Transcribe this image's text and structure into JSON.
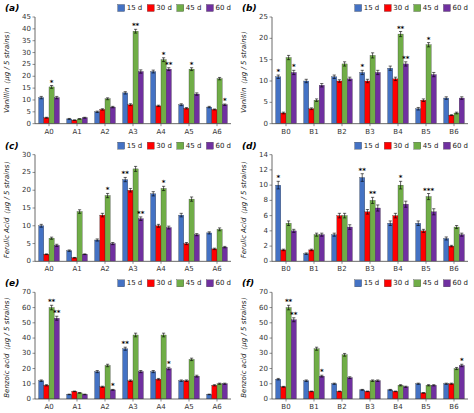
{
  "chart_data": [
    {
      "type": "bar",
      "title": "(a)",
      "ylabel": "Vanillin（μg / 5 strains）",
      "categories": [
        "A0",
        "A1",
        "A2",
        "A3",
        "A4",
        "A5",
        "A6"
      ],
      "ylim": [
        0,
        45
      ],
      "yticks": [
        0,
        5,
        10,
        15,
        20,
        25,
        30,
        35,
        40,
        45
      ],
      "grid": false,
      "legend": "upper right",
      "series": [
        {
          "name": "15 d",
          "color": "#4472C4",
          "values": [
            11,
            2,
            5,
            13,
            22,
            8,
            7
          ],
          "errors": [
            0.5,
            0.2,
            0.3,
            0.5,
            0.6,
            0.4,
            0.3
          ],
          "stars": [
            null,
            null,
            null,
            null,
            null,
            null,
            null
          ]
        },
        {
          "name": "30 d",
          "color": "#FF0000",
          "values": [
            2.5,
            1.5,
            6,
            8,
            7.5,
            6.5,
            6
          ],
          "errors": [
            0.2,
            0.1,
            0.3,
            0.4,
            0.3,
            0.3,
            0.2
          ],
          "stars": [
            null,
            null,
            null,
            null,
            null,
            null,
            null
          ]
        },
        {
          "name": "45 d",
          "color": "#70AD47",
          "values": [
            15.5,
            2,
            10.5,
            39,
            27,
            23,
            19
          ],
          "errors": [
            0.6,
            0.1,
            0.4,
            0.8,
            0.8,
            0.6,
            0.5
          ],
          "stars": [
            "*",
            null,
            null,
            "**",
            "*",
            "*",
            null
          ]
        },
        {
          "name": "60 d",
          "color": "#7030A0",
          "values": [
            11,
            2.5,
            7,
            22,
            23,
            12.5,
            8
          ],
          "errors": [
            0.5,
            0.2,
            0.3,
            0.7,
            0.6,
            0.5,
            0.3
          ],
          "stars": [
            null,
            null,
            null,
            null,
            "**",
            null,
            "*"
          ]
        }
      ]
    },
    {
      "type": "bar",
      "title": "(b)",
      "ylabel": "Vanillin（μg / 5 strains）",
      "categories": [
        "B0",
        "B1",
        "B2",
        "B3",
        "B4",
        "B5",
        "B6"
      ],
      "ylim": [
        0,
        25
      ],
      "yticks": [
        0,
        5,
        10,
        15,
        20,
        25
      ],
      "grid": false,
      "legend": "upper right",
      "series": [
        {
          "name": "15 d",
          "color": "#4472C4",
          "values": [
            11,
            10,
            11,
            12,
            13,
            3.5,
            6
          ],
          "errors": [
            0.4,
            0.4,
            0.4,
            0.5,
            0.5,
            0.3,
            0.3
          ],
          "stars": [
            "*",
            null,
            null,
            "*",
            null,
            null,
            null
          ]
        },
        {
          "name": "30 d",
          "color": "#FF0000",
          "values": [
            2.5,
            3.5,
            10,
            10,
            10.5,
            5.5,
            2
          ],
          "errors": [
            0.2,
            0.2,
            0.3,
            0.4,
            0.4,
            0.3,
            0.1
          ],
          "stars": [
            null,
            null,
            null,
            null,
            null,
            null,
            null
          ]
        },
        {
          "name": "45 d",
          "color": "#70AD47",
          "values": [
            15.5,
            5.5,
            14,
            16,
            21,
            18.5,
            2.5
          ],
          "errors": [
            0.5,
            0.3,
            0.5,
            0.6,
            0.6,
            0.5,
            0.2
          ],
          "stars": [
            null,
            null,
            null,
            null,
            "**",
            "*",
            null
          ]
        },
        {
          "name": "60 d",
          "color": "#7030A0",
          "values": [
            12,
            9,
            10.5,
            12,
            14,
            11.5,
            6
          ],
          "errors": [
            0.5,
            0.4,
            0.4,
            0.5,
            0.5,
            0.5,
            0.3
          ],
          "stars": [
            "*",
            null,
            null,
            null,
            "**",
            null,
            null
          ]
        }
      ]
    },
    {
      "type": "bar",
      "title": "(c)",
      "ylabel": "Ferulic Acid（μg / 5 strains）",
      "categories": [
        "A0",
        "A1",
        "A2",
        "A3",
        "A4",
        "A5",
        "A6"
      ],
      "ylim": [
        0,
        30
      ],
      "yticks": [
        0,
        5,
        10,
        15,
        20,
        25,
        30
      ],
      "grid": false,
      "legend": "upper right",
      "series": [
        {
          "name": "15 d",
          "color": "#4472C4",
          "values": [
            10,
            3,
            6,
            23,
            19,
            13,
            8
          ],
          "errors": [
            0.4,
            0.2,
            0.3,
            0.6,
            0.6,
            0.5,
            0.3
          ],
          "stars": [
            null,
            null,
            null,
            "**",
            null,
            null,
            null
          ]
        },
        {
          "name": "30 d",
          "color": "#FF0000",
          "values": [
            2,
            1,
            13,
            20,
            10,
            5,
            3.5
          ],
          "errors": [
            0.1,
            0.1,
            0.5,
            0.5,
            0.4,
            0.3,
            0.2
          ],
          "stars": [
            null,
            null,
            null,
            null,
            null,
            null,
            null
          ]
        },
        {
          "name": "45 d",
          "color": "#70AD47",
          "values": [
            6.5,
            14,
            18.5,
            26,
            20.5,
            17.5,
            9
          ],
          "errors": [
            0.3,
            0.5,
            0.6,
            0.7,
            0.6,
            0.6,
            0.4
          ],
          "stars": [
            null,
            null,
            "*",
            null,
            "*",
            null,
            null
          ]
        },
        {
          "name": "60 d",
          "color": "#7030A0",
          "values": [
            4.5,
            2,
            5,
            12,
            9.5,
            7.5,
            4
          ],
          "errors": [
            0.3,
            0.1,
            0.3,
            0.5,
            0.4,
            0.3,
            0.2
          ],
          "stars": [
            null,
            null,
            null,
            "**",
            null,
            null,
            null
          ]
        }
      ]
    },
    {
      "type": "bar",
      "title": "(d)",
      "ylabel": "Ferulic Acid（μg / 5 strains）",
      "categories": [
        "B0",
        "B1",
        "B2",
        "B3",
        "B4",
        "B5",
        "B6"
      ],
      "ylim": [
        0,
        14
      ],
      "yticks": [
        0,
        2,
        4,
        6,
        8,
        10,
        12,
        14
      ],
      "grid": false,
      "legend": "upper right",
      "series": [
        {
          "name": "15 d",
          "color": "#4472C4",
          "values": [
            10,
            1,
            3.5,
            11,
            5,
            5,
            3
          ],
          "errors": [
            0.5,
            0.1,
            0.2,
            0.5,
            0.3,
            0.3,
            0.2
          ],
          "stars": [
            "*",
            null,
            null,
            "**",
            null,
            null,
            null
          ]
        },
        {
          "name": "30 d",
          "color": "#FF0000",
          "values": [
            1.5,
            1.5,
            6,
            6.5,
            6,
            4,
            2
          ],
          "errors": [
            0.1,
            0.1,
            0.3,
            0.3,
            0.3,
            0.2,
            0.1
          ],
          "stars": [
            null,
            null,
            null,
            null,
            null,
            null,
            null
          ]
        },
        {
          "name": "45 d",
          "color": "#70AD47",
          "values": [
            5,
            3.5,
            6,
            8,
            10,
            8.5,
            4.5
          ],
          "errors": [
            0.3,
            0.2,
            0.3,
            0.4,
            0.5,
            0.4,
            0.2
          ],
          "stars": [
            null,
            null,
            null,
            "**",
            "*",
            "***",
            null
          ]
        },
        {
          "name": "60 d",
          "color": "#7030A0",
          "values": [
            4,
            3.5,
            4.5,
            7,
            7.5,
            6.5,
            3.5
          ],
          "errors": [
            0.2,
            0.2,
            0.3,
            0.4,
            0.4,
            0.4,
            0.2
          ],
          "stars": [
            null,
            null,
            null,
            null,
            null,
            null,
            null
          ]
        }
      ]
    },
    {
      "type": "bar",
      "title": "(e)",
      "ylabel": "Benzoic acid（μg / 5 strains）",
      "categories": [
        "A0",
        "A1",
        "A2",
        "A3",
        "A4",
        "A5",
        "A6"
      ],
      "ylim": [
        0,
        70
      ],
      "yticks": [
        0,
        10,
        20,
        30,
        40,
        50,
        60,
        70
      ],
      "grid": false,
      "legend": "upper right",
      "series": [
        {
          "name": "15 d",
          "color": "#4472C4",
          "values": [
            12,
            3,
            18,
            33,
            18,
            12,
            3
          ],
          "errors": [
            0.5,
            0.2,
            0.7,
            1.0,
            0.7,
            0.5,
            0.2
          ],
          "stars": [
            null,
            null,
            null,
            "**",
            null,
            null,
            null
          ]
        },
        {
          "name": "30 d",
          "color": "#FF0000",
          "values": [
            9,
            5,
            8,
            12,
            13,
            12,
            9
          ],
          "errors": [
            0.4,
            0.2,
            0.4,
            0.5,
            0.5,
            0.5,
            0.4
          ],
          "stars": [
            null,
            null,
            null,
            null,
            null,
            null,
            null
          ]
        },
        {
          "name": "45 d",
          "color": "#70AD47",
          "values": [
            60,
            4,
            22,
            42,
            42,
            26,
            10
          ],
          "errors": [
            1.5,
            0.2,
            0.8,
            1.2,
            1.2,
            0.8,
            0.4
          ],
          "stars": [
            "**",
            null,
            null,
            null,
            null,
            null,
            null
          ]
        },
        {
          "name": "60 d",
          "color": "#7030A0",
          "values": [
            53,
            3,
            6,
            18,
            20,
            15,
            10
          ],
          "errors": [
            1.3,
            0.2,
            0.3,
            0.7,
            0.8,
            0.6,
            0.4
          ],
          "stars": [
            "**",
            null,
            "*",
            null,
            "*",
            null,
            null
          ]
        }
      ]
    },
    {
      "type": "bar",
      "title": "(f)",
      "ylabel": "Benzoic acid（μg / 5 strains）",
      "categories": [
        "B0",
        "B1",
        "B2",
        "B3",
        "B4",
        "B5",
        "B6"
      ],
      "ylim": [
        0,
        70
      ],
      "yticks": [
        0,
        10,
        20,
        30,
        40,
        50,
        60,
        70
      ],
      "grid": false,
      "legend": "upper right",
      "series": [
        {
          "name": "15 d",
          "color": "#4472C4",
          "values": [
            13,
            12,
            10,
            6,
            6,
            10,
            10
          ],
          "errors": [
            0.5,
            0.5,
            0.4,
            0.3,
            0.3,
            0.4,
            0.4
          ],
          "stars": [
            null,
            null,
            null,
            null,
            null,
            null,
            null
          ]
        },
        {
          "name": "30 d",
          "color": "#FF0000",
          "values": [
            8,
            5,
            5,
            5,
            5,
            4,
            10
          ],
          "errors": [
            0.3,
            0.2,
            0.2,
            0.2,
            0.2,
            0.2,
            0.4
          ],
          "stars": [
            null,
            null,
            null,
            null,
            null,
            null,
            null
          ]
        },
        {
          "name": "45 d",
          "color": "#70AD47",
          "values": [
            60,
            33,
            29,
            12,
            9,
            9,
            20
          ],
          "errors": [
            1.5,
            1.0,
            0.9,
            0.5,
            0.4,
            0.4,
            0.7
          ],
          "stars": [
            "**",
            null,
            null,
            null,
            null,
            null,
            null
          ]
        },
        {
          "name": "60 d",
          "color": "#7030A0",
          "values": [
            52,
            15,
            14,
            12,
            8,
            9,
            22
          ],
          "errors": [
            1.3,
            0.6,
            0.6,
            0.5,
            0.4,
            0.4,
            0.8
          ],
          "stars": [
            "**",
            "*",
            null,
            null,
            null,
            null,
            "*"
          ]
        }
      ]
    }
  ]
}
